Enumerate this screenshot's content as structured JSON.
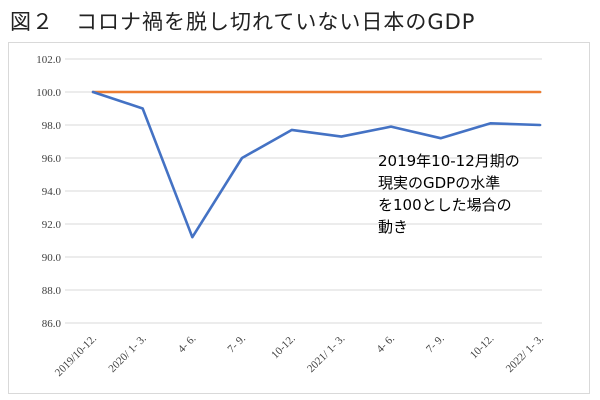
{
  "title": "図２　コロナ禍を脱し切れていない日本のGDP",
  "annotation_lines": [
    "2019年10-12月期の",
    "現実のGDPの水準",
    "を100とした場合の",
    "動き"
  ],
  "colors": {
    "actual": "#4472C4",
    "baseline": "#ED7D31",
    "grid": "#d9d9d9",
    "text": "#404040"
  },
  "chart_data": {
    "type": "line",
    "title": "図２　コロナ禍を脱し切れていない日本のGDP",
    "xlabel": "",
    "ylabel": "",
    "categories": [
      "2019/10-12.",
      "2020/ 1- 3.",
      "4- 6.",
      "7- 9.",
      "10-12.",
      "2021/ 1- 3.",
      "4- 6.",
      "7- 9.",
      "10-12.",
      "2022/ 1- 3."
    ],
    "ylim": [
      86.0,
      102.0
    ],
    "yticks": [
      "102.0",
      "100.0",
      "98.0",
      "96.0",
      "94.0",
      "92.0",
      "90.0",
      "88.0",
      "86.0"
    ],
    "grid": true,
    "legend": "none",
    "series": [
      {
        "values": [
          100.0,
          99.0,
          91.2,
          96.0,
          97.7,
          97.3,
          97.9,
          97.2,
          98.1,
          98.0
        ]
      },
      {
        "values": [
          100.0,
          100.0,
          100.0,
          100.0,
          100.0,
          100.0,
          100.0,
          100.0,
          100.0,
          100.0
        ]
      }
    ]
  }
}
